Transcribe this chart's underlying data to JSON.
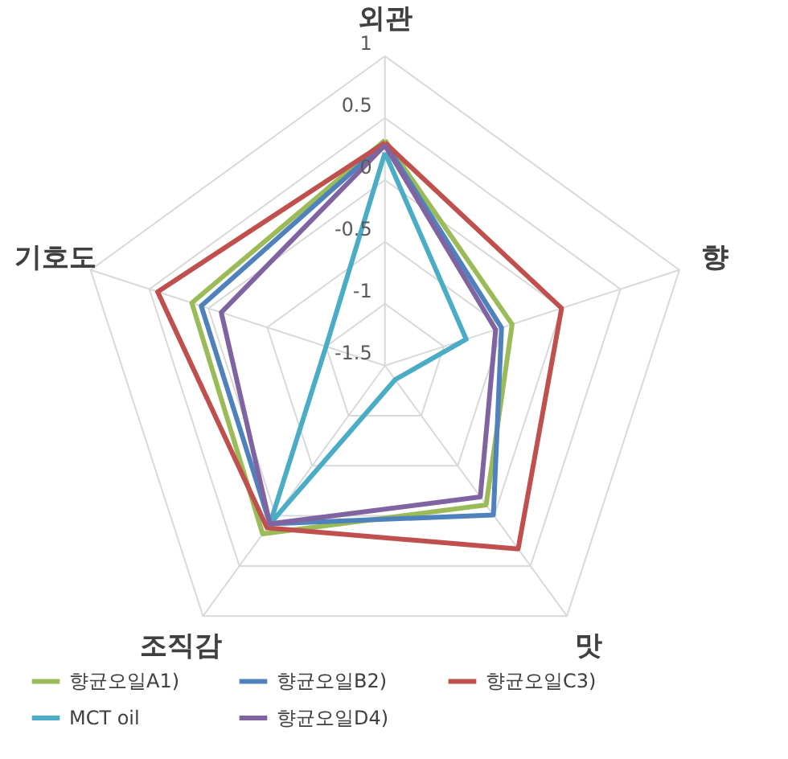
{
  "chart_data": {
    "type": "radar",
    "categories": [
      "외관",
      "향",
      "맛",
      "조직감",
      "기호도"
    ],
    "ylim": [
      -1.5,
      1
    ],
    "yticks": [
      -1.5,
      -1,
      -0.5,
      0,
      0.5,
      1
    ],
    "grid": true,
    "legend": "bottom",
    "line_style": "solid",
    "series": [
      {
        "name": "향균오일A1)",
        "color": "#9bbb59",
        "values": [
          0.32,
          -0.42,
          -0.11,
          0.18,
          0.14
        ]
      },
      {
        "name": "향균오일B2)",
        "color": "#4f81bd",
        "values": [
          0.3,
          -0.51,
          -0.01,
          0.08,
          0.06
        ]
      },
      {
        "name": "향균오일C3)",
        "color": "#c0504d",
        "values": [
          0.3,
          0,
          0.33,
          0.12,
          0.43
        ]
      },
      {
        "name": "MCT oil",
        "color": "#4bacc6",
        "values": [
          0.22,
          -0.81,
          -1.36,
          0.08,
          -1.0
        ]
      },
      {
        "name": "향균오일D4)",
        "color": "#8064a2",
        "values": [
          0.28,
          -0.56,
          -0.19,
          0.08,
          -0.11
        ]
      }
    ]
  }
}
